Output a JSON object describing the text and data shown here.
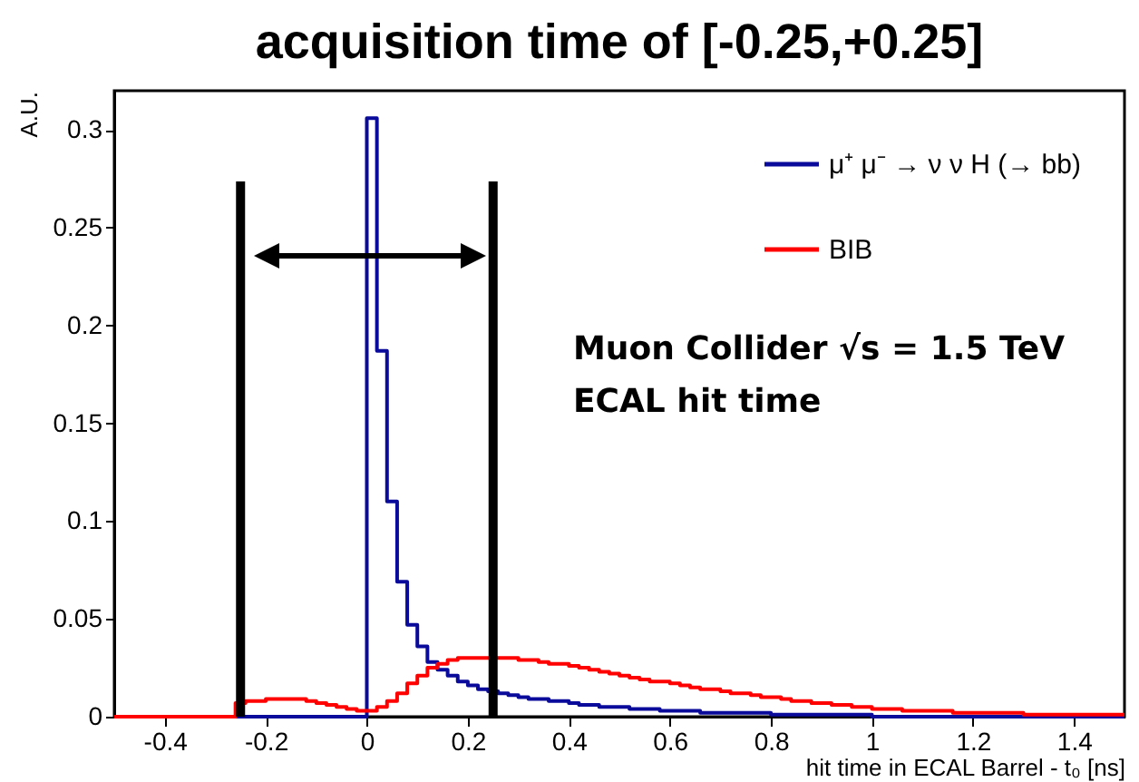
{
  "chart_data": {
    "type": "histogram",
    "title": "acquisition time of [-0.25,+0.25]",
    "xlabel": "hit time in ECAL Barrel - t₀ [ns]",
    "ylabel": "A.U.",
    "bins": [
      -0.5,
      -0.48,
      -0.46,
      -0.44,
      -0.42,
      -0.4,
      -0.38,
      -0.36,
      -0.34,
      -0.32,
      -0.3,
      -0.28,
      -0.26,
      -0.24,
      -0.22,
      -0.2,
      -0.18,
      -0.16,
      -0.14,
      -0.12,
      -0.1,
      -0.08,
      -0.06,
      -0.04,
      -0.02,
      0,
      0.02,
      0.04,
      0.06,
      0.08,
      0.1,
      0.12,
      0.14,
      0.16,
      0.18,
      0.2,
      0.22,
      0.24,
      0.26,
      0.28,
      0.3,
      0.32,
      0.34,
      0.36,
      0.38,
      0.4,
      0.42,
      0.44,
      0.46,
      0.48,
      0.5,
      0.52,
      0.54,
      0.56,
      0.58,
      0.6,
      0.62,
      0.64,
      0.66,
      0.68,
      0.7,
      0.72,
      0.74,
      0.76,
      0.78,
      0.8,
      0.82,
      0.84,
      0.86,
      0.88,
      0.9,
      0.92,
      0.94,
      0.96,
      0.98,
      1,
      1.02,
      1.04,
      1.06,
      1.08,
      1.1,
      1.12,
      1.14,
      1.16,
      1.18,
      1.2,
      1.22,
      1.24,
      1.26,
      1.28,
      1.3,
      1.32,
      1.34,
      1.36,
      1.38,
      1.4,
      1.42,
      1.44,
      1.46,
      1.48,
      1.5
    ],
    "series": [
      {
        "name": "μ⁺ μ⁻ → ν ν H (→ bb)",
        "color": "#0b0b9b",
        "values": [
          0,
          0,
          0,
          0,
          0,
          0,
          0,
          0,
          0,
          0,
          0,
          0,
          0,
          0,
          0,
          0,
          0,
          0,
          0,
          0,
          0,
          0,
          0,
          0,
          0,
          0.306,
          0.187,
          0.11,
          0.069,
          0.047,
          0.036,
          0.028,
          0.024,
          0.021,
          0.018,
          0.016,
          0.014,
          0.013,
          0.012,
          0.011,
          0.01,
          0.009,
          0.009,
          0.008,
          0.008,
          0.007,
          0.006,
          0.006,
          0.005,
          0.005,
          0.005,
          0.004,
          0.004,
          0.004,
          0.003,
          0.003,
          0.003,
          0.003,
          0.002,
          0.002,
          0.002,
          0.002,
          0.002,
          0.002,
          0.002,
          0.001,
          0.001,
          0.001,
          0.001,
          0.001,
          0.001,
          0.001,
          0.001,
          0.001,
          0.001,
          0,
          0,
          0,
          0,
          0,
          0,
          0,
          0,
          0,
          0,
          0,
          0,
          0,
          0,
          0,
          0,
          0,
          0,
          0,
          0,
          0,
          0,
          0,
          0,
          0
        ]
      },
      {
        "name": "BIB",
        "color": "#ff0000",
        "values": [
          0,
          0,
          0,
          0,
          0,
          0,
          0,
          0,
          0,
          0,
          0,
          0,
          0.007,
          0.008,
          0.008,
          0.009,
          0.009,
          0.009,
          0.009,
          0.008,
          0.007,
          0.006,
          0.005,
          0.004,
          0.003,
          0.003,
          0.005,
          0.008,
          0.012,
          0.017,
          0.021,
          0.025,
          0.027,
          0.029,
          0.03,
          0.03,
          0.03,
          0.03,
          0.03,
          0.03,
          0.029,
          0.029,
          0.028,
          0.027,
          0.027,
          0.026,
          0.025,
          0.024,
          0.023,
          0.022,
          0.021,
          0.02,
          0.019,
          0.018,
          0.018,
          0.017,
          0.016,
          0.015,
          0.014,
          0.014,
          0.013,
          0.012,
          0.012,
          0.011,
          0.01,
          0.01,
          0.009,
          0.008,
          0.008,
          0.007,
          0.007,
          0.006,
          0.006,
          0.005,
          0.005,
          0.004,
          0.004,
          0.004,
          0.003,
          0.003,
          0.003,
          0.003,
          0.003,
          0.002,
          0.002,
          0.002,
          0.002,
          0.002,
          0.002,
          0.002,
          0.001,
          0.001,
          0.001,
          0.001,
          0.001,
          0.001,
          0.001,
          0.001,
          0.001,
          0.001
        ]
      }
    ],
    "xlim": [
      -0.5,
      1.5
    ],
    "xticks": [
      -0.4,
      -0.2,
      0,
      0.2,
      0.4,
      0.6,
      0.8,
      1,
      1.2,
      1.4
    ],
    "ylim": [
      0,
      0.32
    ],
    "yticks": [
      0,
      0.05,
      0.1,
      0.15,
      0.2,
      0.25,
      0.3
    ],
    "ref_lines": [
      {
        "axis": "x",
        "value": -0.25,
        "color": "#000000"
      },
      {
        "axis": "x",
        "value": 0.25,
        "color": "#000000"
      }
    ],
    "annotations": [
      "Muon Collider √s = 1.5 TeV",
      "ECAL hit time"
    ],
    "legend": "top right"
  }
}
